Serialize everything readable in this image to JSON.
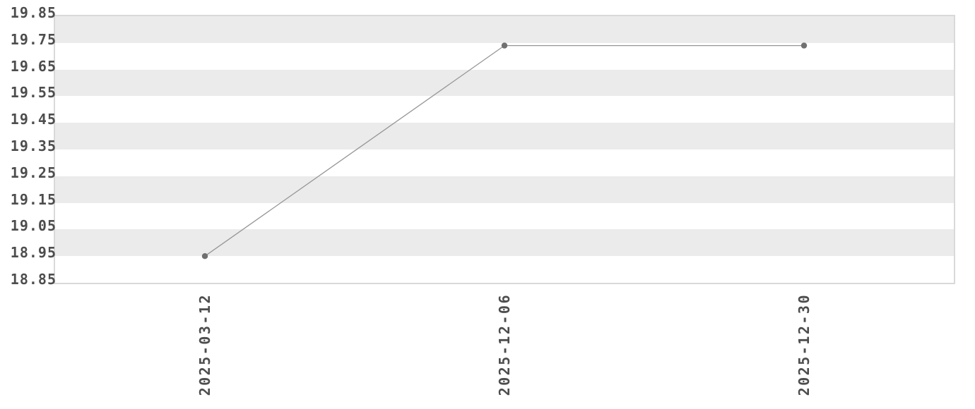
{
  "chart_data": {
    "type": "line",
    "categories": [
      "2025-03-12",
      "2025-12-06",
      "2025-12-30"
    ],
    "values": [
      18.95,
      19.74,
      19.74
    ],
    "y_ticks": [
      "19.85",
      "19.75",
      "19.65",
      "19.55",
      "19.45",
      "19.35",
      "19.25",
      "19.15",
      "19.05",
      "18.95",
      "18.85"
    ],
    "ylim": [
      18.85,
      19.85
    ],
    "title": "",
    "xlabel": "",
    "ylabel": "",
    "legend": "none",
    "grid": "alternating horizontal bands, gray band between each pair of ticks starting at top",
    "colors": {
      "band_fill": "#ebebeb",
      "plot_border": "#d9d9d9",
      "line": "#969696",
      "marker": "#707070",
      "tick_text": "#4d4d4d",
      "background": "#ffffff"
    }
  }
}
